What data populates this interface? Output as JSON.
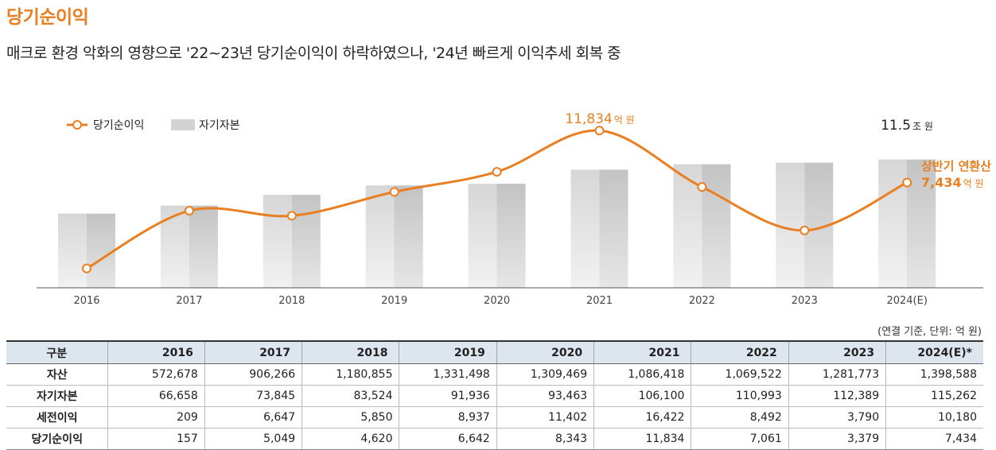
{
  "title": "당기순이익",
  "subtitle": "매크로 환경 악화의 영향으로 '22~23년 당기순이익이 하락하였으나, '24년 빠르게 이익추세 회복 중",
  "colors": {
    "accent": "#e87f22",
    "bar": "#d3d3d3",
    "header_bg": "#dde5ef"
  },
  "chart_data": {
    "type": "bar",
    "categories": [
      "2016",
      "2017",
      "2018",
      "2019",
      "2020",
      "2021",
      "2022",
      "2023",
      "2024(E)"
    ],
    "series": [
      {
        "name": "자기자본",
        "type": "bar",
        "values": [
          66658,
          73845,
          83524,
          91936,
          93463,
          106100,
          110993,
          112389,
          115262
        ]
      },
      {
        "name": "당기순이익",
        "type": "line",
        "values": [
          157,
          5049,
          4620,
          6642,
          8343,
          11834,
          7061,
          3379,
          7434
        ]
      }
    ],
    "legend": [
      "당기순이익",
      "자기자본"
    ],
    "annotations": {
      "peak_value": "11,834",
      "peak_unit": "억 원",
      "equity_value": "11.5",
      "equity_unit": "조 원",
      "forecast_label": "상반기 연환산",
      "forecast_value": "7,434",
      "forecast_unit": "억 원"
    }
  },
  "table": {
    "note": "(연결 기준,  단위: 억 원)",
    "headers": [
      "구분",
      "2016",
      "2017",
      "2018",
      "2019",
      "2020",
      "2021",
      "2022",
      "2023",
      "2024(E)*"
    ],
    "rows": [
      {
        "label": "자산",
        "values": [
          "572,678",
          "906,266",
          "1,180,855",
          "1,331,498",
          "1,309,469",
          "1,086,418",
          "1,069,522",
          "1,281,773",
          "1,398,588"
        ]
      },
      {
        "label": "자기자본",
        "values": [
          "66,658",
          "73,845",
          "83,524",
          "91,936",
          "93,463",
          "106,100",
          "110,993",
          "112,389",
          "115,262"
        ]
      },
      {
        "label": "세전이익",
        "values": [
          "209",
          "6,647",
          "5,850",
          "8,937",
          "11,402",
          "16,422",
          "8,492",
          "3,790",
          "10,180"
        ]
      },
      {
        "label": "당기순이익",
        "values": [
          "157",
          "5,049",
          "4,620",
          "6,642",
          "8,343",
          "11,834",
          "7,061",
          "3,379",
          "7,434"
        ]
      }
    ]
  }
}
